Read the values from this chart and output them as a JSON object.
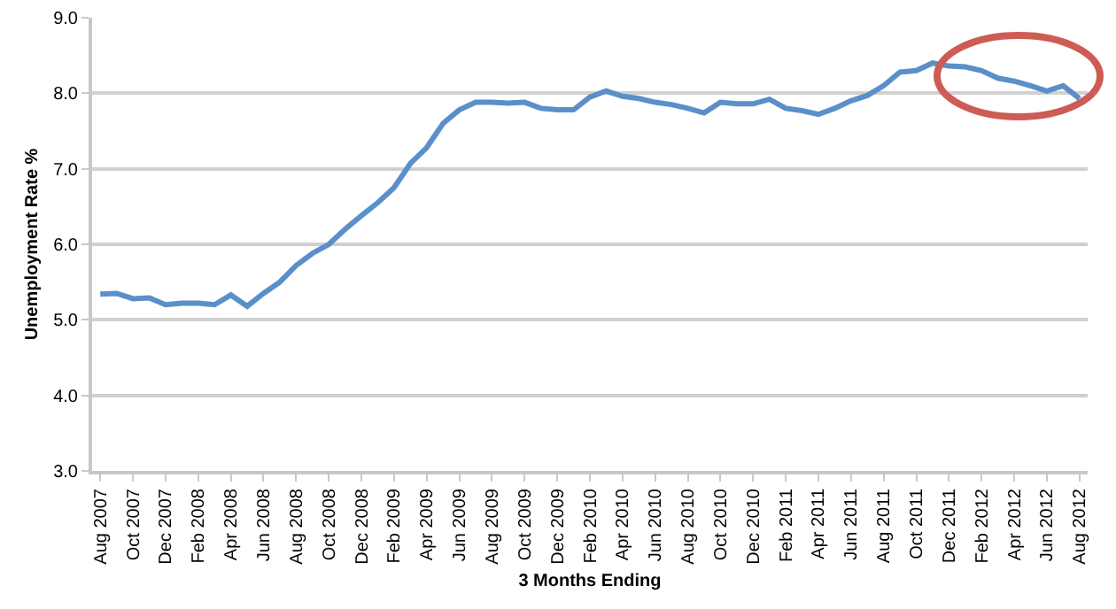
{
  "chart_data": {
    "type": "line",
    "xlabel": "3 Months Ending",
    "ylabel": "Unemployment Rate %",
    "categories": [
      "Aug 2007",
      null,
      "Oct 2007",
      null,
      "Dec 2007",
      null,
      "Feb 2008",
      null,
      "Apr 2008",
      null,
      "Jun 2008",
      null,
      "Aug 2008",
      null,
      "Oct 2008",
      null,
      "Dec 2008",
      null,
      "Feb 2009",
      null,
      "Apr 2009",
      null,
      "Jun 2009",
      null,
      "Aug 2009",
      null,
      "Oct 2009",
      null,
      "Dec 2009",
      null,
      "Feb 2010",
      null,
      "Apr 2010",
      null,
      "Jun 2010",
      null,
      "Aug 2010",
      null,
      "Oct 2010",
      null,
      "Dec 2010",
      null,
      "Feb 2011",
      null,
      "Apr 2011",
      null,
      "Jun 2011",
      null,
      "Aug 2011",
      null,
      "Oct 2011",
      null,
      "Dec 2011",
      null,
      "Feb 2012",
      null,
      "Apr 2012",
      null,
      "Jun 2012",
      null,
      "Aug 2012"
    ],
    "series": [
      {
        "color": "#5b8fc9",
        "values": [
          5.34,
          5.35,
          5.28,
          5.29,
          5.2,
          5.22,
          5.22,
          5.2,
          5.33,
          5.18,
          5.35,
          5.5,
          5.72,
          5.88,
          6.0,
          6.2,
          6.38,
          6.55,
          6.75,
          7.07,
          7.28,
          7.6,
          7.78,
          7.88,
          7.88,
          7.87,
          7.88,
          7.8,
          7.78,
          7.78,
          7.95,
          8.03,
          7.96,
          7.93,
          7.88,
          7.85,
          7.8,
          7.74,
          7.88,
          7.86,
          7.86,
          7.92,
          7.8,
          7.77,
          7.72,
          7.8,
          7.9,
          7.97,
          8.1,
          8.28,
          8.3,
          8.4,
          8.36,
          8.35,
          8.3,
          8.2,
          8.16,
          8.1,
          8.03,
          8.1,
          7.93
        ]
      }
    ],
    "ylim": [
      3,
      9
    ],
    "yticks": [
      {
        "value": 3,
        "label": "3.0"
      },
      {
        "value": 4,
        "label": "4.0"
      },
      {
        "value": 5,
        "label": "5.0"
      },
      {
        "value": 6,
        "label": "6.0"
      },
      {
        "value": 7,
        "label": "7.0"
      },
      {
        "value": 8,
        "label": "8.0"
      },
      {
        "value": 9,
        "label": "9.0"
      }
    ],
    "grid": "y",
    "marker": "none",
    "line_style": "solid"
  }
}
